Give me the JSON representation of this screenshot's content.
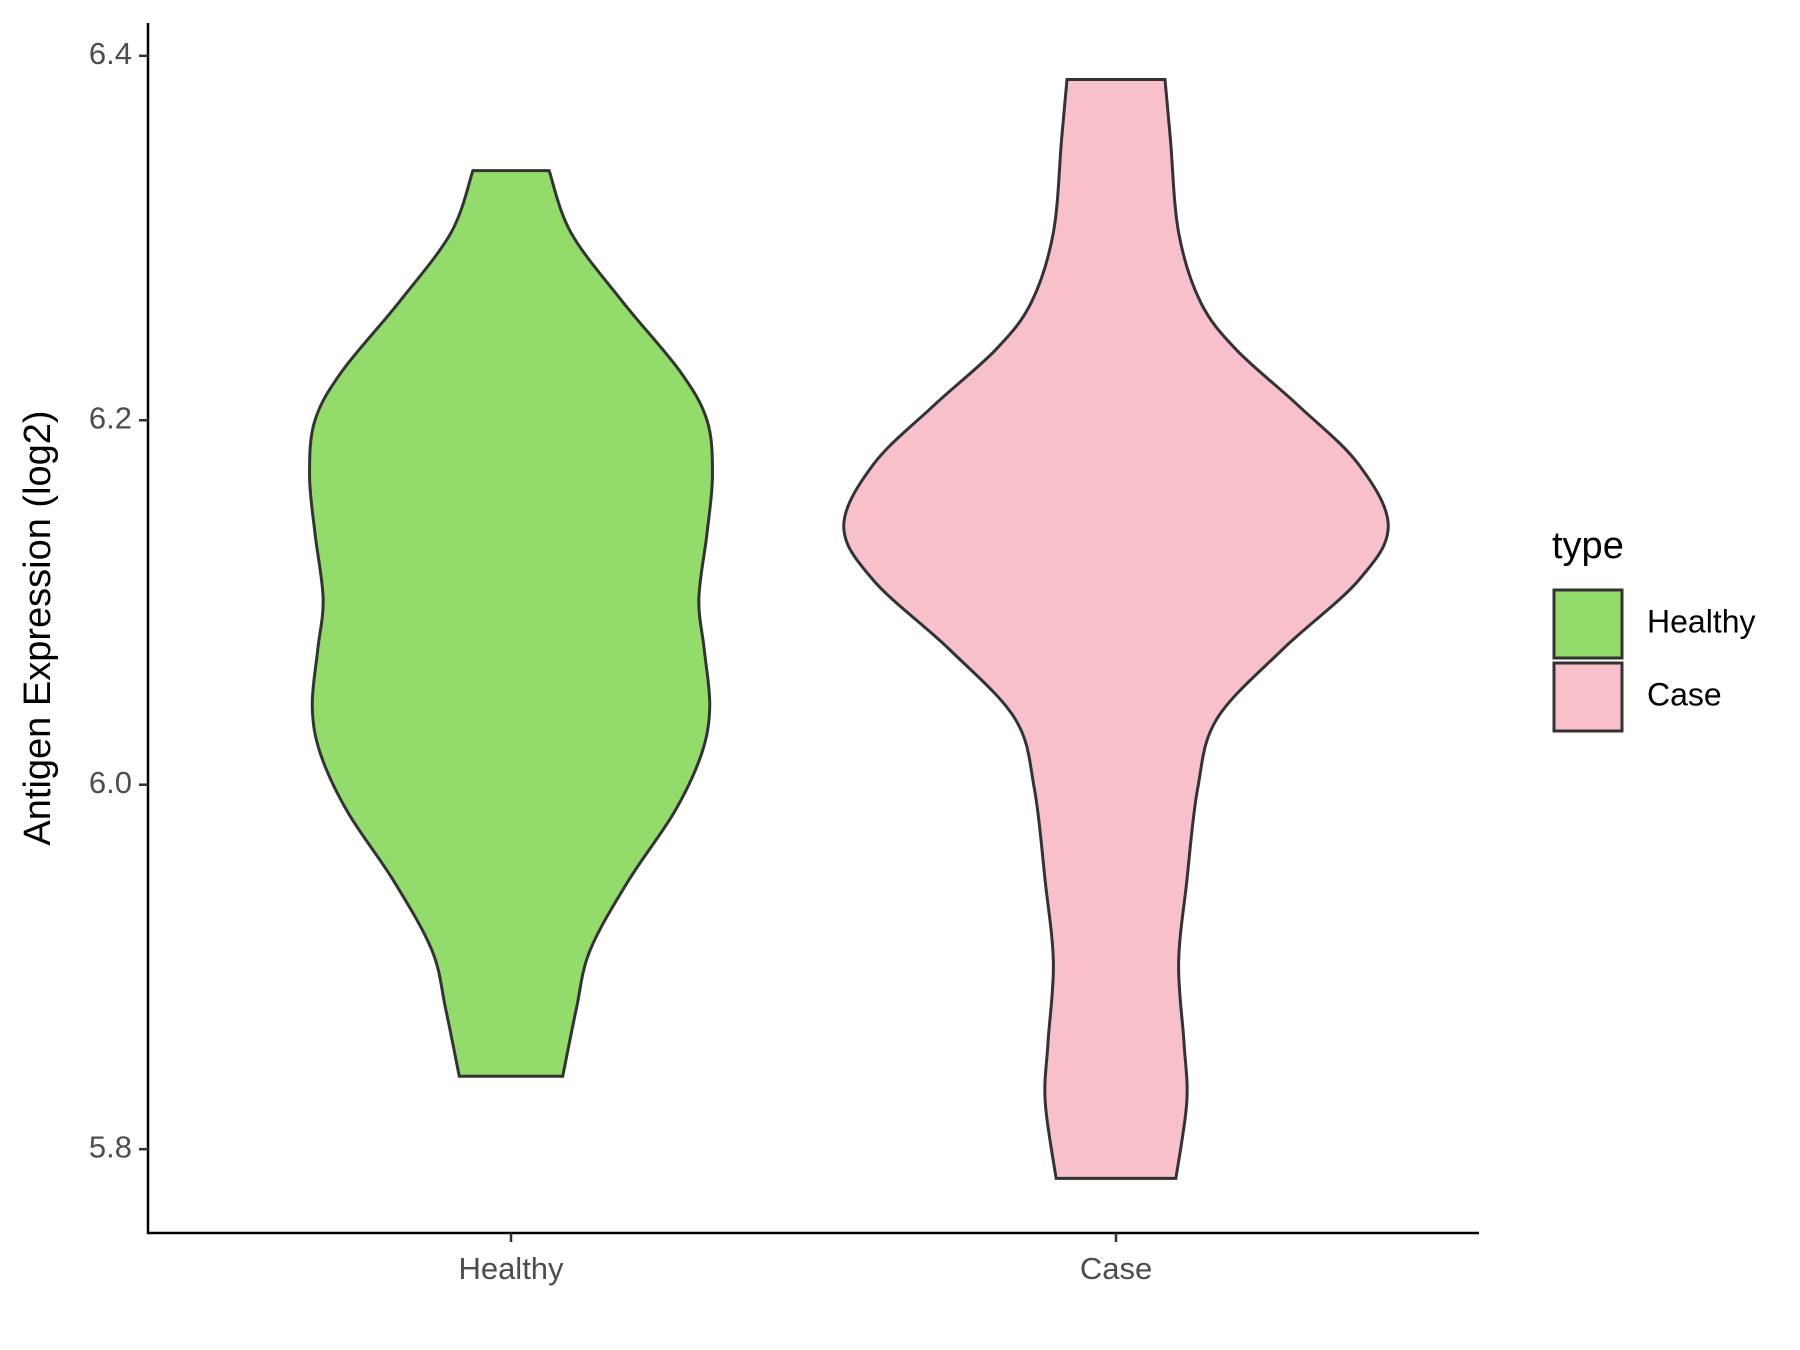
{
  "chart_data": {
    "type": "violin",
    "y_label": "Antigen Expression (log2)",
    "categories": [
      "Healthy",
      "Case"
    ],
    "legend_title": "type",
    "legend_position": "right",
    "ylim": [
      5.754,
      6.418
    ],
    "yticks": [
      {
        "value": 5.8,
        "label": "5.8"
      },
      {
        "value": 6.0,
        "label": "6.0"
      },
      {
        "value": 6.2,
        "label": "6.2"
      },
      {
        "value": 6.4,
        "label": "6.4"
      }
    ],
    "series": [
      {
        "name": "Healthy",
        "color": "#93dc6b",
        "y": [
          6.337,
          6.303,
          6.265,
          6.227,
          6.2,
          6.17,
          6.138,
          6.102,
          6.074,
          6.043,
          6.017,
          5.985,
          5.947,
          5.909,
          5.877,
          5.84
        ],
        "density": [
          0.14,
          0.22,
          0.41,
          0.62,
          0.72,
          0.74,
          0.72,
          0.69,
          0.71,
          0.73,
          0.7,
          0.6,
          0.43,
          0.29,
          0.24,
          0.19
        ]
      },
      {
        "name": "Case",
        "color": "#f7c0cb",
        "y": [
          6.387,
          6.354,
          6.303,
          6.265,
          6.239,
          6.208,
          6.176,
          6.142,
          6.112,
          6.074,
          6.036,
          5.998,
          5.947,
          5.902,
          5.858,
          5.826,
          5.784
        ],
        "density": [
          0.18,
          0.2,
          0.23,
          0.31,
          0.44,
          0.67,
          0.89,
          1.0,
          0.89,
          0.61,
          0.37,
          0.3,
          0.26,
          0.23,
          0.25,
          0.26,
          0.22
        ]
      }
    ]
  }
}
